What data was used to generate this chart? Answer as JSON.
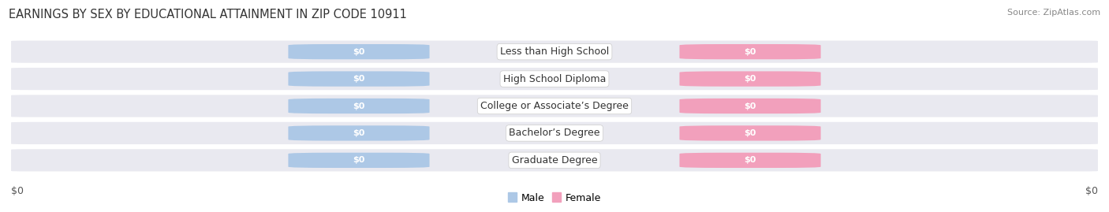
{
  "title": "EARNINGS BY SEX BY EDUCATIONAL ATTAINMENT IN ZIP CODE 10911",
  "source": "Source: ZipAtlas.com",
  "categories": [
    "Less than High School",
    "High School Diploma",
    "College or Associate’s Degree",
    "Bachelor’s Degree",
    "Graduate Degree"
  ],
  "male_values": [
    0,
    0,
    0,
    0,
    0
  ],
  "female_values": [
    0,
    0,
    0,
    0,
    0
  ],
  "male_color": "#adc8e6",
  "female_color": "#f2a0bc",
  "row_bg_color": "#e9e9f0",
  "row_line_color": "#ffffff",
  "title_fontsize": 10.5,
  "source_fontsize": 8,
  "axis_label_fontsize": 9,
  "cat_label_fontsize": 9,
  "val_label_fontsize": 8,
  "xlabel_left": "$0",
  "xlabel_right": "$0",
  "legend_male": "Male",
  "legend_female": "Female",
  "background_color": "#ffffff",
  "title_color": "#333333",
  "source_color": "#888888",
  "axis_tick_color": "#555555",
  "cat_label_color": "#333333",
  "val_label_color": "#ffffff"
}
